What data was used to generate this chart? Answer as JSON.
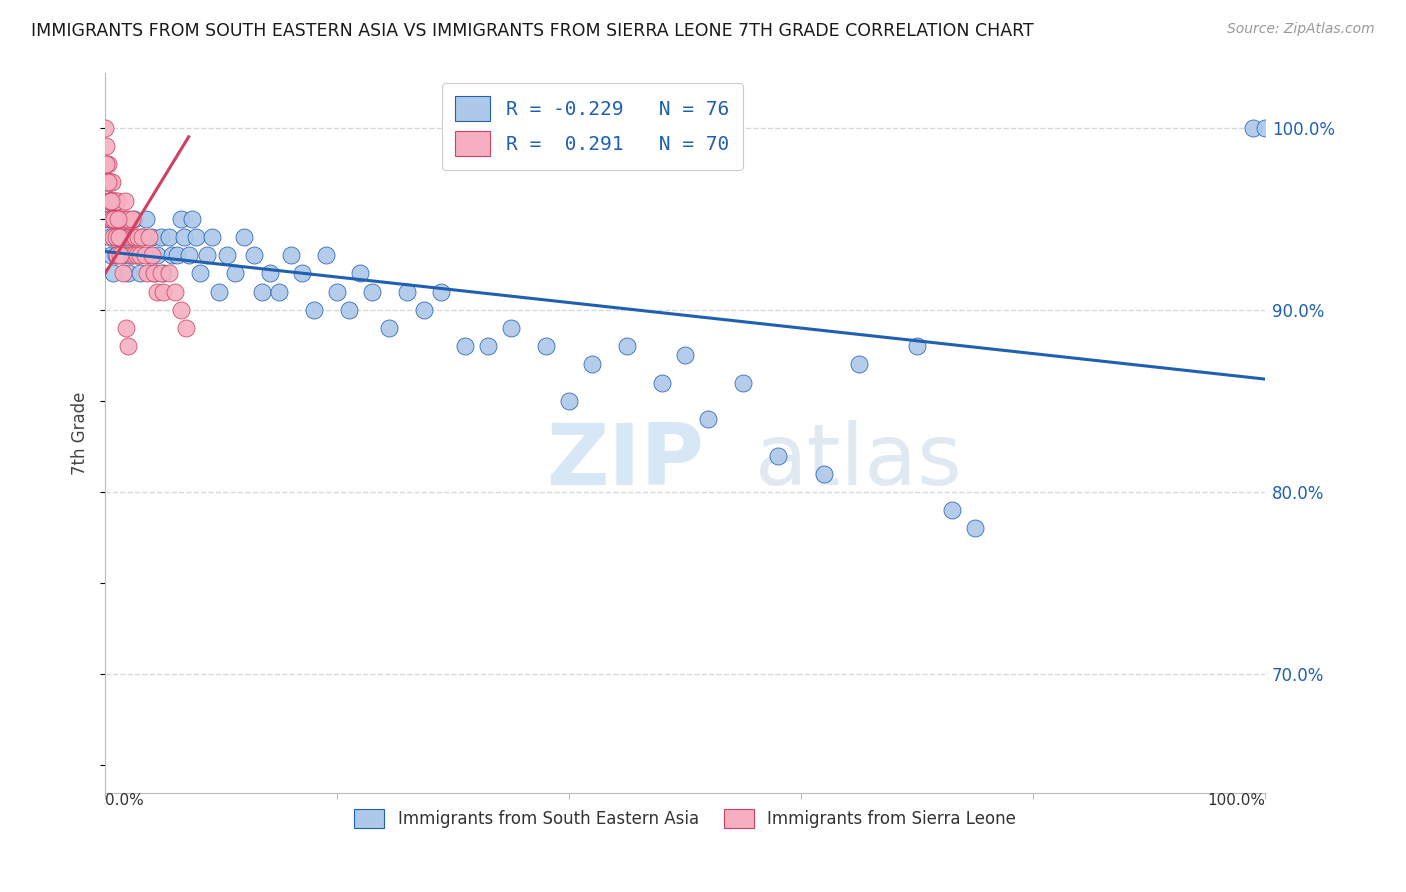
{
  "title": "IMMIGRANTS FROM SOUTH EASTERN ASIA VS IMMIGRANTS FROM SIERRA LEONE 7TH GRADE CORRELATION CHART",
  "source": "Source: ZipAtlas.com",
  "ylabel": "7th Grade",
  "watermark": "ZIPatlas",
  "r_blue": -0.229,
  "n_blue": 76,
  "r_pink": 0.291,
  "n_pink": 70,
  "legend_label_blue": "Immigrants from South Eastern Asia",
  "legend_label_pink": "Immigrants from Sierra Leone",
  "blue_color": "#adc8e8",
  "pink_color": "#f5afc0",
  "blue_line_color": "#2060b0",
  "pink_line_color": "#d04060",
  "ytick_labels": [
    "100.0%",
    "90.0%",
    "80.0%",
    "70.0%"
  ],
  "ytick_values": [
    1.0,
    0.9,
    0.8,
    0.7
  ],
  "blue_scatter_x": [
    0.001,
    0.002,
    0.003,
    0.004,
    0.005,
    0.006,
    0.007,
    0.008,
    0.009,
    0.01,
    0.012,
    0.015,
    0.018,
    0.02,
    0.022,
    0.025,
    0.028,
    0.03,
    0.032,
    0.035,
    0.038,
    0.04,
    0.042,
    0.045,
    0.048,
    0.05,
    0.055,
    0.058,
    0.062,
    0.065,
    0.068,
    0.072,
    0.075,
    0.078,
    0.082,
    0.088,
    0.092,
    0.098,
    0.105,
    0.112,
    0.12,
    0.128,
    0.135,
    0.142,
    0.15,
    0.16,
    0.17,
    0.18,
    0.19,
    0.2,
    0.21,
    0.22,
    0.23,
    0.245,
    0.26,
    0.275,
    0.29,
    0.31,
    0.33,
    0.35,
    0.38,
    0.4,
    0.42,
    0.45,
    0.48,
    0.5,
    0.52,
    0.55,
    0.58,
    0.62,
    0.65,
    0.7,
    0.73,
    0.75,
    0.99,
    1.0
  ],
  "blue_scatter_y": [
    0.97,
    0.95,
    0.96,
    0.94,
    0.93,
    0.96,
    0.92,
    0.95,
    0.93,
    0.94,
    0.95,
    0.93,
    0.94,
    0.92,
    0.93,
    0.95,
    0.93,
    0.92,
    0.94,
    0.95,
    0.93,
    0.94,
    0.92,
    0.93,
    0.94,
    0.92,
    0.94,
    0.93,
    0.93,
    0.95,
    0.94,
    0.93,
    0.95,
    0.94,
    0.92,
    0.93,
    0.94,
    0.91,
    0.93,
    0.92,
    0.94,
    0.93,
    0.91,
    0.92,
    0.91,
    0.93,
    0.92,
    0.9,
    0.93,
    0.91,
    0.9,
    0.92,
    0.91,
    0.89,
    0.91,
    0.9,
    0.91,
    0.88,
    0.88,
    0.89,
    0.88,
    0.85,
    0.87,
    0.88,
    0.86,
    0.875,
    0.84,
    0.86,
    0.82,
    0.81,
    0.87,
    0.88,
    0.79,
    0.78,
    1.0,
    1.0
  ],
  "pink_scatter_x": [
    0.0,
    0.001,
    0.001,
    0.002,
    0.002,
    0.003,
    0.003,
    0.004,
    0.004,
    0.005,
    0.005,
    0.006,
    0.006,
    0.007,
    0.007,
    0.008,
    0.008,
    0.009,
    0.009,
    0.01,
    0.01,
    0.011,
    0.012,
    0.012,
    0.013,
    0.014,
    0.015,
    0.016,
    0.017,
    0.018,
    0.019,
    0.02,
    0.021,
    0.022,
    0.023,
    0.024,
    0.025,
    0.026,
    0.027,
    0.028,
    0.03,
    0.032,
    0.034,
    0.036,
    0.038,
    0.04,
    0.042,
    0.045,
    0.048,
    0.05,
    0.055,
    0.06,
    0.065,
    0.07,
    0.001,
    0.002,
    0.003,
    0.004,
    0.005,
    0.006,
    0.007,
    0.008,
    0.009,
    0.01,
    0.011,
    0.012,
    0.013,
    0.015,
    0.018,
    0.02
  ],
  "pink_scatter_y": [
    1.0,
    0.99,
    0.98,
    0.98,
    0.97,
    0.97,
    0.96,
    0.97,
    0.96,
    0.97,
    0.96,
    0.95,
    0.97,
    0.96,
    0.95,
    0.96,
    0.95,
    0.96,
    0.95,
    0.94,
    0.96,
    0.95,
    0.95,
    0.94,
    0.95,
    0.94,
    0.95,
    0.94,
    0.96,
    0.95,
    0.94,
    0.95,
    0.94,
    0.93,
    0.95,
    0.94,
    0.93,
    0.94,
    0.93,
    0.94,
    0.93,
    0.94,
    0.93,
    0.92,
    0.94,
    0.93,
    0.92,
    0.91,
    0.92,
    0.91,
    0.92,
    0.91,
    0.9,
    0.89,
    0.98,
    0.97,
    0.96,
    0.95,
    0.96,
    0.95,
    0.94,
    0.95,
    0.94,
    0.93,
    0.95,
    0.94,
    0.93,
    0.92,
    0.89,
    0.88
  ],
  "blue_trend_x": [
    0.0,
    1.0
  ],
  "blue_trend_y": [
    0.932,
    0.862
  ],
  "pink_trend_x": [
    0.0,
    0.072
  ],
  "pink_trend_y": [
    0.92,
    0.995
  ],
  "xlim": [
    0.0,
    1.0
  ],
  "ylim": [
    0.635,
    1.03
  ],
  "background_color": "#ffffff",
  "grid_color": "#d8d8d8"
}
